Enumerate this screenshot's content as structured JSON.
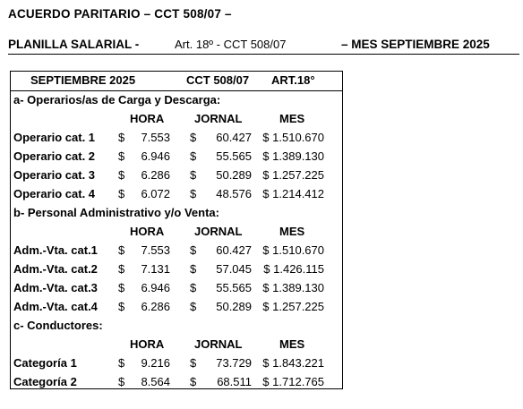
{
  "header": {
    "title": "ACUERDO PARITARIO – CCT 508/07 –",
    "subtitle_left": "PLANILLA SALARIAL -",
    "subtitle_mid": "Art. 18º - CCT 508/07",
    "subtitle_right": "– MES SEPTIEMBRE 2025"
  },
  "table": {
    "head": {
      "month": "SEPTIEMBRE  2025",
      "cct": "CCT  508/07",
      "art": "ART.18°"
    },
    "columns": {
      "hora": "HORA",
      "jornal": "JORNAL",
      "mes": "MES"
    },
    "currency": "$",
    "sections": [
      {
        "title": "a- Operarios/as de Carga y Descarga:",
        "rows": [
          {
            "label": "Operario cat. 1",
            "hora": "7.553",
            "jornal": "60.427",
            "mes": "1.510.670"
          },
          {
            "label": "Operario cat. 2",
            "hora": "6.946",
            "jornal": "55.565",
            "mes": "1.389.130"
          },
          {
            "label": "Operario cat. 3",
            "hora": "6.286",
            "jornal": "50.289",
            "mes": "1.257.225"
          },
          {
            "label": "Operario cat. 4",
            "hora": "6.072",
            "jornal": "48.576",
            "mes": "1.214.412"
          }
        ]
      },
      {
        "title": "b- Personal Administrativo y/o Venta:",
        "rows": [
          {
            "label": "Adm.-Vta. cat.1",
            "hora": "7.553",
            "jornal": "60.427",
            "mes": "1.510.670"
          },
          {
            "label": "Adm.-Vta. cat.2",
            "hora": "7.131",
            "jornal": "57.045",
            "mes": "1.426.115"
          },
          {
            "label": "Adm.-Vta. cat.3",
            "hora": "6.946",
            "jornal": "55.565",
            "mes": "1.389.130"
          },
          {
            "label": "Adm.-Vta. cat.4",
            "hora": "6.286",
            "jornal": "50.289",
            "mes": "1.257.225"
          }
        ]
      },
      {
        "title": "c- Conductores:",
        "rows": [
          {
            "label": "Categoría 1",
            "hora": "9.216",
            "jornal": "73.729",
            "mes": "1.843.221"
          },
          {
            "label": "Categoría 2",
            "hora": "8.564",
            "jornal": "68.511",
            "mes": "1.712.765"
          }
        ]
      }
    ]
  }
}
